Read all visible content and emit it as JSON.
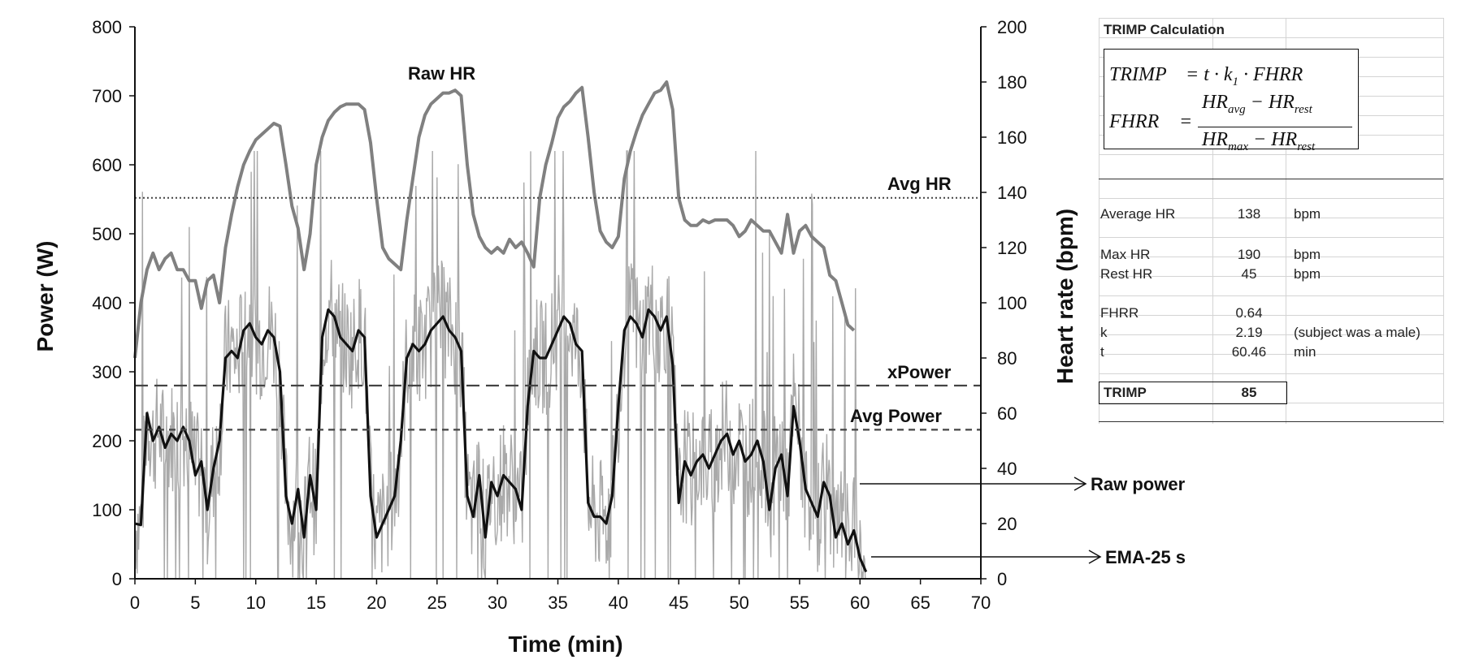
{
  "chart_data": {
    "type": "line",
    "xlabel": "Time (min)",
    "ylabel_left": "Power (W)",
    "ylabel_right": "Heart rate (bpm)",
    "xlim": [
      0,
      70
    ],
    "ylim_left": [
      0,
      800
    ],
    "ylim_right": [
      0,
      200
    ],
    "x_ticks": [
      "0",
      "5",
      "10",
      "15",
      "20",
      "25",
      "30",
      "35",
      "40",
      "45",
      "50",
      "55",
      "60",
      "65",
      "70"
    ],
    "y_left_ticks": [
      "0",
      "100",
      "200",
      "300",
      "400",
      "500",
      "600",
      "700",
      "800"
    ],
    "y_right_ticks": [
      "0",
      "20",
      "40",
      "60",
      "80",
      "100",
      "120",
      "140",
      "160",
      "180",
      "200"
    ],
    "grid": false,
    "series": [
      {
        "name": "Raw HR",
        "axis": "right",
        "color": "#808080",
        "x": [
          0,
          0.5,
          1,
          1.5,
          2,
          2.5,
          3,
          3.5,
          4,
          4.5,
          5,
          5.5,
          6,
          6.5,
          7,
          7.5,
          8,
          8.5,
          9,
          9.5,
          10,
          10.5,
          11,
          11.5,
          12,
          12.5,
          13,
          13.5,
          14,
          14.5,
          15,
          15.5,
          16,
          16.5,
          17,
          17.5,
          18,
          18.5,
          19,
          19.5,
          20,
          20.5,
          21,
          21.5,
          22,
          22.5,
          23,
          23.5,
          24,
          24.5,
          25,
          25.5,
          26,
          26.5,
          27,
          27.5,
          28,
          28.5,
          29,
          29.5,
          30,
          30.5,
          31,
          31.5,
          32,
          32.5,
          33,
          33.5,
          34,
          34.5,
          35,
          35.5,
          36,
          36.5,
          37,
          37.5,
          38,
          38.5,
          39,
          39.5,
          40,
          40.5,
          41,
          41.5,
          42,
          42.5,
          43,
          43.5,
          44,
          44.5,
          45,
          45.5,
          46,
          46.5,
          47,
          47.5,
          48,
          48.5,
          49,
          49.5,
          50,
          50.5,
          51,
          51.5,
          52,
          52.5,
          53,
          53.5,
          54,
          54.5,
          55,
          55.5,
          56,
          56.5,
          57,
          57.5,
          58,
          58.5,
          59,
          59.5
        ],
        "values": [
          80,
          100,
          112,
          118,
          112,
          116,
          118,
          112,
          112,
          108,
          108,
          98,
          108,
          110,
          100,
          120,
          132,
          142,
          150,
          155,
          159,
          161,
          163,
          165,
          164,
          150,
          135,
          127,
          112,
          125,
          150,
          160,
          166,
          169,
          171,
          172,
          172,
          172,
          170,
          158,
          138,
          120,
          116,
          114,
          112,
          130,
          145,
          160,
          168,
          172,
          174,
          176,
          176,
          177,
          175,
          150,
          132,
          124,
          120,
          118,
          120,
          118,
          123,
          120,
          122,
          118,
          113,
          138,
          150,
          158,
          167,
          171,
          173,
          176,
          178,
          160,
          140,
          126,
          122,
          120,
          124,
          145,
          155,
          162,
          168,
          172,
          176,
          177,
          180,
          170,
          138,
          130,
          128,
          128,
          130,
          129,
          130,
          130,
          130,
          128,
          124,
          126,
          130,
          128,
          126,
          126,
          122,
          118,
          132,
          118,
          126,
          128,
          124,
          122,
          120,
          110,
          108,
          100,
          92,
          90
        ]
      },
      {
        "name": "Raw power",
        "axis": "left",
        "color": "#a9a9a9"
      },
      {
        "name": "EMA-25 s",
        "axis": "left",
        "color": "#111111",
        "x": [
          0,
          0.5,
          1,
          1.5,
          2,
          2.5,
          3,
          3.5,
          4,
          4.5,
          5,
          5.5,
          6,
          6.5,
          7,
          7.5,
          8,
          8.5,
          9,
          9.5,
          10,
          10.5,
          11,
          11.5,
          12,
          12.5,
          13,
          13.5,
          14,
          14.5,
          15,
          15.5,
          16,
          16.5,
          17,
          17.5,
          18,
          18.5,
          19,
          19.5,
          20,
          20.5,
          21,
          21.5,
          22,
          22.5,
          23,
          23.5,
          24,
          24.5,
          25,
          25.5,
          26,
          26.5,
          27,
          27.5,
          28,
          28.5,
          29,
          29.5,
          30,
          30.5,
          31,
          31.5,
          32,
          32.5,
          33,
          33.5,
          34,
          34.5,
          35,
          35.5,
          36,
          36.5,
          37,
          37.5,
          38,
          38.5,
          39,
          39.5,
          40,
          40.5,
          41,
          41.5,
          42,
          42.5,
          43,
          43.5,
          44,
          44.5,
          45,
          45.5,
          46,
          46.5,
          47,
          47.5,
          48,
          48.5,
          49,
          49.5,
          50,
          50.5,
          51,
          51.5,
          52,
          52.5,
          53,
          53.5,
          54,
          54.5,
          55,
          55.5,
          56,
          56.5,
          57,
          57.5,
          58,
          58.5,
          59,
          59.5,
          60,
          60.5
        ],
        "values": [
          80,
          78,
          240,
          200,
          220,
          190,
          210,
          200,
          220,
          200,
          150,
          170,
          100,
          160,
          200,
          320,
          330,
          320,
          360,
          370,
          350,
          340,
          360,
          350,
          300,
          120,
          80,
          130,
          60,
          150,
          100,
          350,
          390,
          380,
          350,
          340,
          330,
          360,
          350,
          120,
          60,
          80,
          100,
          120,
          200,
          320,
          340,
          330,
          340,
          360,
          370,
          380,
          360,
          350,
          330,
          120,
          90,
          150,
          60,
          140,
          120,
          150,
          140,
          130,
          100,
          250,
          330,
          320,
          320,
          340,
          360,
          380,
          370,
          340,
          330,
          110,
          90,
          90,
          80,
          120,
          250,
          360,
          380,
          370,
          350,
          390,
          380,
          360,
          380,
          310,
          110,
          170,
          150,
          170,
          180,
          160,
          180,
          200,
          210,
          180,
          200,
          170,
          180,
          200,
          170,
          100,
          160,
          180,
          120,
          250,
          200,
          130,
          110,
          90,
          140,
          120,
          60,
          80,
          50,
          70,
          30,
          10
        ]
      }
    ],
    "reference_lines": [
      {
        "label": "Avg HR",
        "axis": "right",
        "value": 138,
        "style": "dotted"
      },
      {
        "label": "xPower",
        "axis": "left",
        "value": 280,
        "style": "dashed"
      },
      {
        "label": "Avg Power",
        "axis": "left",
        "value": 216,
        "style": "dashed"
      }
    ],
    "annotations": [
      "Raw HR",
      "Avg HR",
      "xPower",
      "Avg Power",
      "Raw power",
      "EMA-25 s"
    ]
  },
  "trimp": {
    "title": "TRIMP Calculation",
    "formula": {
      "lhs1": "TRIMP",
      "rhs1": "= t · k",
      "rhs1_sub": "1",
      "rhs1_tail": "· FHRR",
      "lhs2": "FHRR",
      "eq2": "=",
      "num_a": "HR",
      "num_a_sub": "avg",
      "num_minus": "− HR",
      "num_b_sub": "rest",
      "den_a": "HR",
      "den_a_sub": "max",
      "den_minus": "− HR",
      "den_b_sub": "rest"
    },
    "rows": [
      {
        "label": "Average HR",
        "value": "138",
        "unit": "bpm"
      },
      {
        "label": "Max HR",
        "value": "190",
        "unit": "bpm"
      },
      {
        "label": "Rest HR",
        "value": "45",
        "unit": "bpm"
      },
      {
        "label": "FHRR",
        "value": "0.64",
        "unit": ""
      },
      {
        "label": "k",
        "value": "2.19",
        "unit": "(subject was a male)"
      },
      {
        "label": "t",
        "value": "60.46",
        "unit": "min"
      }
    ],
    "result": {
      "label": "TRIMP",
      "value": "85"
    }
  }
}
